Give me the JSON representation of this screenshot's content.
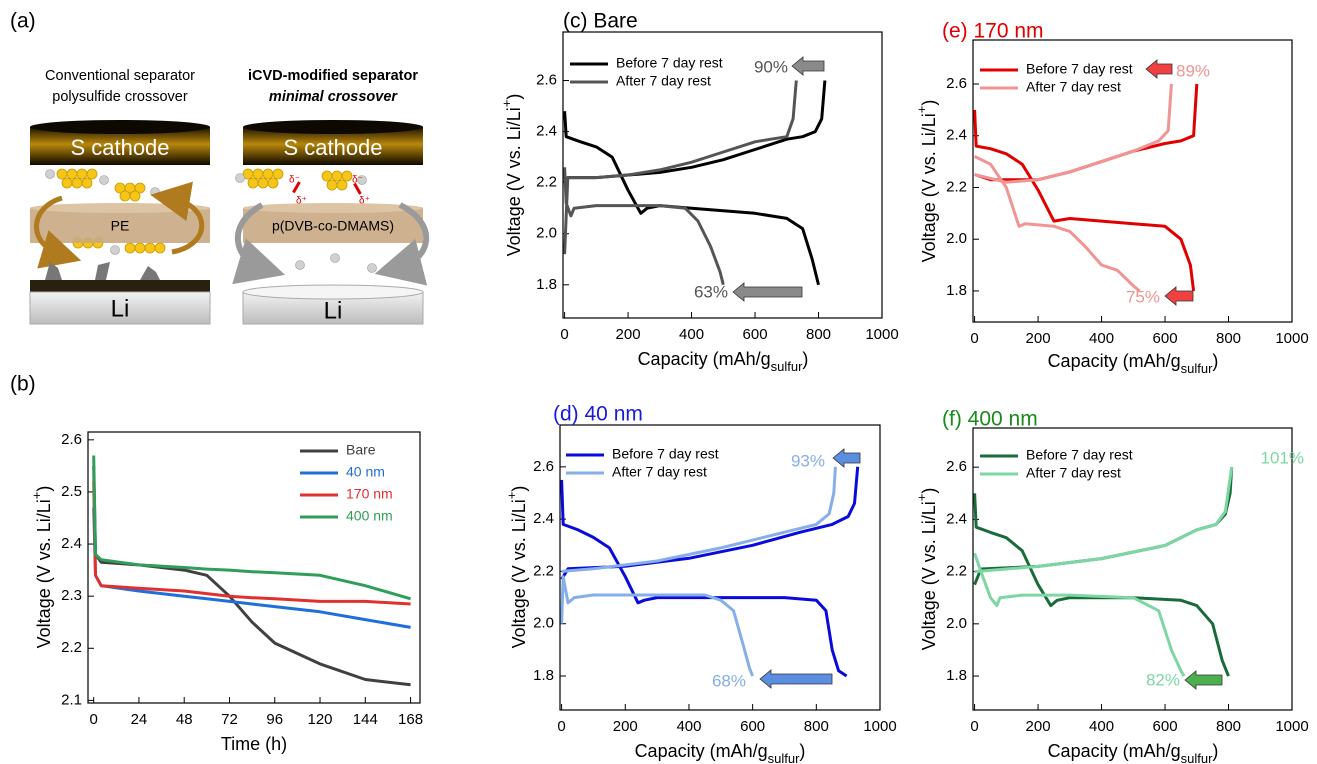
{
  "diagram": {
    "panel_label": "(a)",
    "left": {
      "caption": [
        "Conventional separator",
        "polysulfide crossover"
      ],
      "cathode": "S cathode",
      "separator": "PE",
      "anode": "Li"
    },
    "right": {
      "caption": [
        "iCVD-modified separator",
        "minimal crossover"
      ],
      "cathode": "S cathode",
      "separator": "p(DVB-co-DMAMS)",
      "anode": "Li",
      "charges": [
        "δ⁻",
        "δ⁺",
        "δ⁻",
        "δ⁺"
      ]
    }
  },
  "chart_data": [
    {
      "type": "line",
      "panel_label": "(b)",
      "x_label": "Time (h)",
      "y_label": [
        "Voltage (V vs. Li/Li",
        "+",
        ")"
      ],
      "xlim": [
        -3,
        173
      ],
      "ylim": [
        2.095,
        2.615
      ],
      "xticks": [
        0,
        24,
        48,
        72,
        96,
        120,
        144,
        168
      ],
      "yticks": [
        2.1,
        2.2,
        2.3,
        2.4,
        2.5,
        2.6
      ],
      "legend_colored_text": true,
      "x": [
        0,
        1,
        4,
        24,
        48,
        60,
        72,
        84,
        96,
        120,
        144,
        168
      ],
      "series": [
        {
          "name": "Bare",
          "color": "#404040",
          "values": [
            2.55,
            2.38,
            2.365,
            2.36,
            2.35,
            2.34,
            2.3,
            2.25,
            2.21,
            2.17,
            2.14,
            2.13
          ]
        },
        {
          "name": "40 nm",
          "color": "#1f6fdb",
          "values": [
            2.47,
            2.34,
            2.32,
            2.31,
            2.3,
            2.295,
            2.29,
            2.285,
            2.28,
            2.27,
            2.255,
            2.24
          ]
        },
        {
          "name": "170 nm",
          "color": "#e03030",
          "values": [
            2.52,
            2.34,
            2.32,
            2.315,
            2.31,
            2.305,
            2.3,
            2.297,
            2.295,
            2.29,
            2.29,
            2.285
          ]
        },
        {
          "name": "400 nm",
          "color": "#2e9e5a",
          "values": [
            2.57,
            2.38,
            2.37,
            2.36,
            2.355,
            2.352,
            2.35,
            2.347,
            2.345,
            2.34,
            2.32,
            2.295
          ]
        }
      ]
    },
    {
      "type": "line",
      "title": "(c) Bare",
      "title_color": "#000000",
      "x_label": [
        "Capacity (mAh/g",
        "sulfur",
        ")"
      ],
      "y_label": [
        "Voltage (V vs. Li/Li",
        "+",
        ")"
      ],
      "xlim": [
        -5,
        1000
      ],
      "ylim": [
        1.67,
        2.79
      ],
      "xticks": [
        0,
        200,
        400,
        600,
        800,
        1000
      ],
      "yticks": [
        1.8,
        {
          "value": 2,
          "label": "2.0"
        },
        2.2,
        2.4,
        2.6
      ],
      "series": [
        {
          "name": "Before 7 day rest",
          "color": "#000000",
          "x": [
            0,
            5,
            50,
            100,
            150,
            200,
            240,
            260,
            300,
            400,
            500,
            600,
            700,
            750,
            780,
            800,
            null,
            0,
            10,
            100,
            200,
            300,
            400,
            500,
            600,
            700,
            750,
            790,
            810,
            820
          ],
          "values": [
            2.48,
            2.38,
            2.36,
            2.34,
            2.3,
            2.17,
            2.08,
            2.1,
            2.11,
            2.1,
            2.09,
            2.08,
            2.06,
            2.02,
            1.9,
            1.8,
            null,
            2.2,
            2.22,
            2.22,
            2.23,
            2.24,
            2.26,
            2.29,
            2.33,
            2.37,
            2.38,
            2.4,
            2.45,
            2.6
          ]
        },
        {
          "name": "After 7 day rest",
          "color": "#555555",
          "x": [
            0,
            5,
            20,
            30,
            100,
            200,
            300,
            380,
            420,
            460,
            490,
            500,
            null,
            0,
            10,
            100,
            200,
            300,
            400,
            500,
            600,
            650,
            700,
            720,
            730
          ],
          "values": [
            2.26,
            2.12,
            2.07,
            2.1,
            2.11,
            2.11,
            2.11,
            2.1,
            2.05,
            1.95,
            1.85,
            1.8,
            null,
            1.92,
            2.22,
            2.22,
            2.23,
            2.25,
            2.28,
            2.32,
            2.36,
            2.37,
            2.38,
            2.45,
            2.6
          ]
        }
      ],
      "annotations": [
        {
          "text": "90%",
          "color": "#555555",
          "arrow_color": "#8a8a8a"
        },
        {
          "text": "63%",
          "color": "#555555",
          "arrow_color": "#8a8a8a"
        }
      ]
    },
    {
      "type": "line",
      "title": "(d) 40 nm",
      "title_color": "#1a1adb",
      "x_label": [
        "Capacity (mAh/g",
        "sulfur",
        ")"
      ],
      "y_label": [
        "Voltage (V vs. Li/Li",
        "+",
        ")"
      ],
      "xlim": [
        -5,
        1000
      ],
      "ylim": [
        1.67,
        2.76
      ],
      "xticks": [
        0,
        200,
        400,
        600,
        800,
        1000
      ],
      "yticks": [
        1.8,
        {
          "value": 2,
          "label": "2.0"
        },
        2.2,
        2.4,
        2.6
      ],
      "series": [
        {
          "name": "Before 7 day rest",
          "color": "#0a0adc",
          "x": [
            0,
            5,
            50,
            100,
            150,
            200,
            240,
            260,
            300,
            500,
            700,
            800,
            830,
            850,
            870,
            895,
            null,
            0,
            20,
            200,
            400,
            600,
            750,
            850,
            900,
            920,
            930
          ],
          "values": [
            2.55,
            2.38,
            2.36,
            2.33,
            2.29,
            2.18,
            2.08,
            2.09,
            2.1,
            2.1,
            2.1,
            2.09,
            2.05,
            1.9,
            1.82,
            1.8,
            null,
            2.17,
            2.21,
            2.22,
            2.25,
            2.3,
            2.35,
            2.38,
            2.41,
            2.46,
            2.6
          ]
        },
        {
          "name": "After 7 day rest",
          "color": "#86aee8",
          "x": [
            0,
            5,
            20,
            40,
            100,
            300,
            450,
            500,
            540,
            570,
            590,
            600,
            null,
            0,
            100,
            300,
            500,
            700,
            800,
            840,
            855,
            860
          ],
          "values": [
            2.0,
            2.18,
            2.08,
            2.1,
            2.11,
            2.11,
            2.11,
            2.09,
            2.05,
            1.92,
            1.83,
            1.8,
            null,
            2.2,
            2.21,
            2.24,
            2.29,
            2.35,
            2.38,
            2.42,
            2.5,
            2.6
          ]
        }
      ],
      "annotations": [
        {
          "text": "93%",
          "color": "#86aee8",
          "arrow_color": "#5b8ee0"
        },
        {
          "text": "68%",
          "color": "#86aee8",
          "arrow_color": "#5b8ee0"
        }
      ]
    },
    {
      "type": "line",
      "title": "(e) 170 nm",
      "title_color": "#e00000",
      "x_label": [
        "Capacity (mAh/g",
        "sulfur",
        ")"
      ],
      "y_label": [
        "Voltage (V vs. Li/Li",
        "+",
        ")"
      ],
      "xlim": [
        -5,
        1000
      ],
      "ylim": [
        1.68,
        2.77
      ],
      "xticks": [
        0,
        200,
        400,
        600,
        800,
        1000
      ],
      "yticks": [
        1.8,
        {
          "value": 2,
          "label": "2.0"
        },
        2.2,
        2.4,
        2.6
      ],
      "series": [
        {
          "name": "Before 7 day rest",
          "color": "#e00000",
          "x": [
            0,
            5,
            50,
            100,
            150,
            200,
            250,
            300,
            400,
            500,
            600,
            650,
            680,
            690,
            null,
            0,
            50,
            200,
            300,
            400,
            500,
            600,
            650,
            690,
            700
          ],
          "values": [
            2.5,
            2.36,
            2.35,
            2.33,
            2.29,
            2.19,
            2.07,
            2.08,
            2.07,
            2.06,
            2.05,
            2.0,
            1.9,
            1.8,
            null,
            2.25,
            2.23,
            2.23,
            2.26,
            2.3,
            2.34,
            2.37,
            2.38,
            2.4,
            2.6
          ]
        },
        {
          "name": "After 7 day rest",
          "color": "#f09494",
          "x": [
            0,
            50,
            100,
            140,
            160,
            250,
            300,
            350,
            400,
            450,
            500,
            520,
            null,
            0,
            100,
            200,
            300,
            400,
            500,
            580,
            610,
            620
          ],
          "values": [
            2.32,
            2.29,
            2.2,
            2.05,
            2.06,
            2.05,
            2.03,
            1.97,
            1.9,
            1.88,
            1.82,
            1.8,
            null,
            2.25,
            2.22,
            2.23,
            2.26,
            2.3,
            2.34,
            2.38,
            2.42,
            2.6
          ]
        }
      ],
      "annotations": [
        {
          "text": "89%",
          "color": "#f09494",
          "arrow_color": "#f04040"
        },
        {
          "text": "75%",
          "color": "#f09494",
          "arrow_color": "#f04040"
        }
      ]
    },
    {
      "type": "line",
      "title": "(f) 400 nm",
      "title_color": "#1a8a1a",
      "x_label": [
        "Capacity (mAh/g",
        "sulfur",
        ")"
      ],
      "y_label": [
        "Voltage (V vs. Li/Li",
        "+",
        ")"
      ],
      "xlim": [
        -5,
        1000
      ],
      "ylim": [
        1.67,
        2.75
      ],
      "xticks": [
        0,
        200,
        400,
        600,
        800,
        1000
      ],
      "yticks": [
        1.8,
        {
          "value": 2,
          "label": "2.0"
        },
        2.2,
        2.4,
        2.6
      ],
      "series": [
        {
          "name": "Before 7 day rest",
          "color": "#1a6b3a",
          "x": [
            0,
            5,
            50,
            100,
            150,
            200,
            240,
            260,
            300,
            500,
            650,
            700,
            750,
            780,
            800,
            null,
            0,
            20,
            200,
            400,
            600,
            700,
            760,
            790,
            805,
            810
          ],
          "values": [
            2.5,
            2.37,
            2.35,
            2.33,
            2.28,
            2.15,
            2.07,
            2.09,
            2.1,
            2.1,
            2.09,
            2.07,
            2.0,
            1.86,
            1.8,
            null,
            2.15,
            2.21,
            2.22,
            2.25,
            2.3,
            2.36,
            2.38,
            2.42,
            2.5,
            2.6
          ]
        },
        {
          "name": "After 7 day rest",
          "color": "#7dd6a3",
          "x": [
            0,
            20,
            50,
            70,
            80,
            150,
            300,
            500,
            580,
            620,
            650,
            660,
            null,
            0,
            200,
            400,
            600,
            700,
            760,
            790,
            810
          ],
          "values": [
            2.27,
            2.2,
            2.1,
            2.07,
            2.1,
            2.11,
            2.11,
            2.1,
            2.05,
            1.9,
            1.82,
            1.8,
            null,
            2.2,
            2.22,
            2.25,
            2.3,
            2.36,
            2.38,
            2.43,
            2.6
          ]
        }
      ],
      "annotations": [
        {
          "text": "101%",
          "color": "#7dd6a3"
        },
        {
          "text": "82%",
          "color": "#7dd6a3",
          "arrow_color": "#4caf50"
        }
      ]
    }
  ]
}
